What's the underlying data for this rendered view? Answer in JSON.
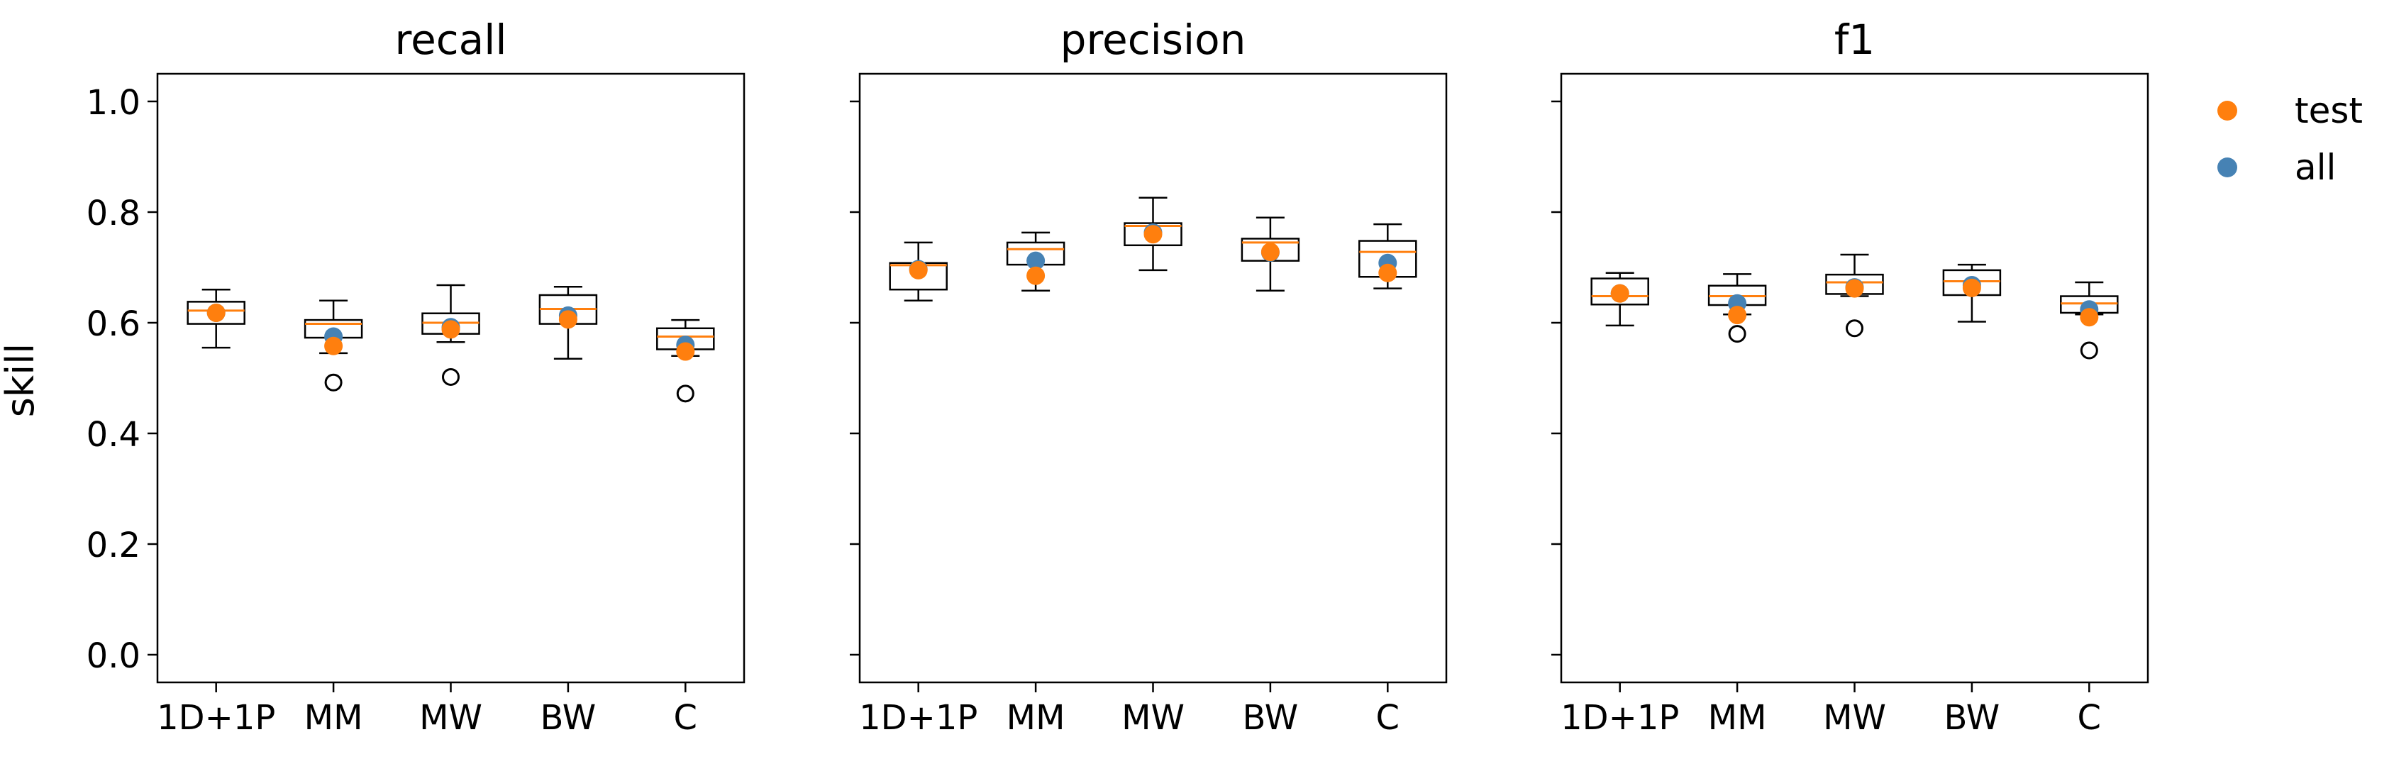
{
  "chart_data": {
    "type": "box",
    "ylabel": "skill",
    "ylim": [
      -0.05,
      1.05
    ],
    "yticks": [
      0.0,
      0.2,
      0.4,
      0.6,
      0.8,
      1.0
    ],
    "ytick_labels": [
      "0.0",
      "0.2",
      "0.4",
      "0.6",
      "0.8",
      "1.0"
    ],
    "categories": [
      "1D+1P",
      "MM",
      "MW",
      "BW",
      "C"
    ],
    "legend": {
      "placement": "outside top-right",
      "entries": [
        {
          "label": "test",
          "color": "#ff7f0e"
        },
        {
          "label": "all",
          "color": "#4682b4"
        }
      ]
    },
    "colors": {
      "median": "#ff7f0e",
      "test": "#ff7f0e",
      "all": "#4682b4",
      "box": "#000000"
    },
    "panels": [
      {
        "title": "recall",
        "boxes": [
          {
            "category": "1D+1P",
            "whisker_low": 0.555,
            "q1": 0.598,
            "median": 0.622,
            "q3": 0.638,
            "whisker_high": 0.66,
            "outliers": []
          },
          {
            "category": "MM",
            "whisker_low": 0.545,
            "q1": 0.573,
            "median": 0.598,
            "q3": 0.605,
            "whisker_high": 0.64,
            "outliers": [
              0.492
            ]
          },
          {
            "category": "MW",
            "whisker_low": 0.565,
            "q1": 0.58,
            "median": 0.6,
            "q3": 0.617,
            "whisker_high": 0.668,
            "outliers": [
              0.502
            ]
          },
          {
            "category": "BW",
            "whisker_low": 0.535,
            "q1": 0.598,
            "median": 0.625,
            "q3": 0.65,
            "whisker_high": 0.665,
            "outliers": []
          },
          {
            "category": "C",
            "whisker_low": 0.54,
            "q1": 0.552,
            "median": 0.575,
            "q3": 0.59,
            "whisker_high": 0.605,
            "outliers": [
              0.472
            ]
          }
        ],
        "test": [
          0.618,
          0.558,
          0.588,
          0.606,
          0.548
        ],
        "all": [
          0.618,
          0.575,
          0.592,
          0.613,
          0.56
        ]
      },
      {
        "title": "precision",
        "boxes": [
          {
            "category": "1D+1P",
            "whisker_low": 0.64,
            "q1": 0.66,
            "median": 0.704,
            "q3": 0.708,
            "whisker_high": 0.745,
            "outliers": []
          },
          {
            "category": "MM",
            "whisker_low": 0.658,
            "q1": 0.705,
            "median": 0.733,
            "q3": 0.745,
            "whisker_high": 0.763,
            "outliers": []
          },
          {
            "category": "MW",
            "whisker_low": 0.695,
            "q1": 0.74,
            "median": 0.775,
            "q3": 0.78,
            "whisker_high": 0.826,
            "outliers": []
          },
          {
            "category": "BW",
            "whisker_low": 0.658,
            "q1": 0.712,
            "median": 0.745,
            "q3": 0.752,
            "whisker_high": 0.79,
            "outliers": []
          },
          {
            "category": "C",
            "whisker_low": 0.662,
            "q1": 0.683,
            "median": 0.728,
            "q3": 0.748,
            "whisker_high": 0.778,
            "outliers": []
          }
        ],
        "test": [
          0.695,
          0.685,
          0.76,
          0.728,
          0.69
        ],
        "all": [
          0.697,
          0.712,
          0.763,
          0.727,
          0.708
        ]
      },
      {
        "title": "f1",
        "boxes": [
          {
            "category": "1D+1P",
            "whisker_low": 0.595,
            "q1": 0.633,
            "median": 0.648,
            "q3": 0.68,
            "whisker_high": 0.69,
            "outliers": []
          },
          {
            "category": "MM",
            "whisker_low": 0.615,
            "q1": 0.632,
            "median": 0.648,
            "q3": 0.667,
            "whisker_high": 0.688,
            "outliers": [
              0.58
            ]
          },
          {
            "category": "MW",
            "whisker_low": 0.648,
            "q1": 0.652,
            "median": 0.673,
            "q3": 0.687,
            "whisker_high": 0.723,
            "outliers": [
              0.59
            ]
          },
          {
            "category": "BW",
            "whisker_low": 0.602,
            "q1": 0.65,
            "median": 0.675,
            "q3": 0.695,
            "whisker_high": 0.705,
            "outliers": []
          },
          {
            "category": "C",
            "whisker_low": 0.615,
            "q1": 0.618,
            "median": 0.635,
            "q3": 0.648,
            "whisker_high": 0.673,
            "outliers": [
              0.55
            ]
          }
        ],
        "test": [
          0.653,
          0.614,
          0.662,
          0.663,
          0.61
        ],
        "all": [
          0.653,
          0.635,
          0.664,
          0.668,
          0.624
        ]
      }
    ]
  }
}
